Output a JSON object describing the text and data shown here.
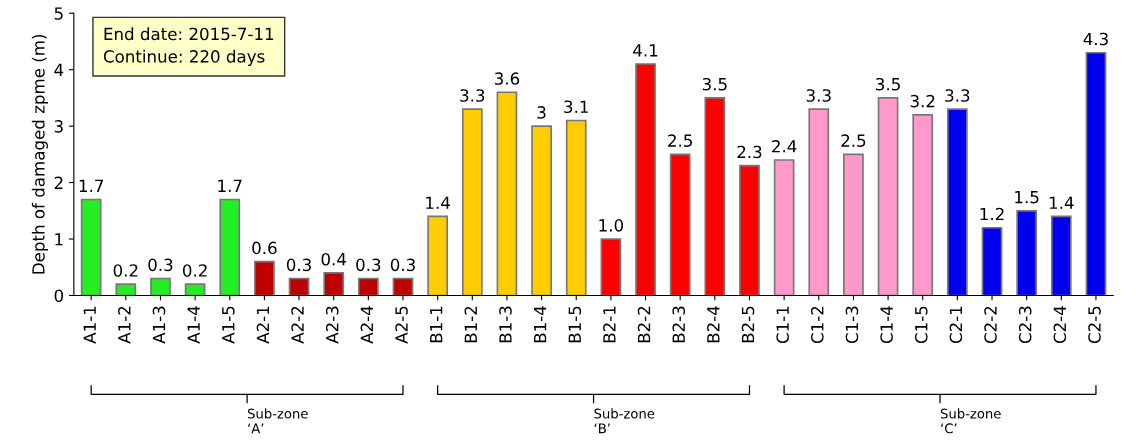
{
  "chart_data": {
    "type": "bar",
    "ylabel": "Depth of damaged zpme (m)",
    "categories": [
      "A1-1",
      "A1-2",
      "A1-3",
      "A1-4",
      "A1-5",
      "A2-1",
      "A2-2",
      "A2-3",
      "A2-4",
      "A2-5",
      "B1-1",
      "B1-2",
      "B1-3",
      "B1-4",
      "B1-5",
      "B2-1",
      "B2-2",
      "B2-3",
      "B2-4",
      "B2-5",
      "C1-1",
      "C1-2",
      "C1-3",
      "C1-4",
      "C1-5",
      "C2-1",
      "C2-2",
      "C2-3",
      "C2-4",
      "C2-5"
    ],
    "values": [
      1.7,
      0.2,
      0.3,
      0.2,
      1.7,
      0.6,
      0.3,
      0.4,
      0.3,
      0.3,
      1.4,
      3.3,
      3.6,
      3,
      3.1,
      1.0,
      4.1,
      2.5,
      3.5,
      2.3,
      2.4,
      3.3,
      2.5,
      3.5,
      3.2,
      3.3,
      1.2,
      1.5,
      1.4,
      4.3
    ],
    "value_labels": [
      "1.7",
      "0.2",
      "0.3",
      "0.2",
      "1.7",
      "0.6",
      "0.3",
      "0.4",
      "0.3",
      "0.3",
      "1.4",
      "3.3",
      "3.6",
      "3",
      "3.1",
      "1.0",
      "4.1",
      "2.5",
      "3.5",
      "2.3",
      "2.4",
      "3.3",
      "2.5",
      "3.5",
      "3.2",
      "3.3",
      "1.2",
      "1.5",
      "1.4",
      "4.3"
    ],
    "colors": [
      "#22ee22",
      "#22ee22",
      "#22ee22",
      "#22ee22",
      "#22ee22",
      "#c00000",
      "#c00000",
      "#c00000",
      "#c00000",
      "#c00000",
      "#ffcc00",
      "#ffcc00",
      "#ffcc00",
      "#ffcc00",
      "#ffcc00",
      "#ff0000",
      "#ff0000",
      "#ff0000",
      "#ff0000",
      "#ff0000",
      "#ff99cc",
      "#ff99cc",
      "#ff99cc",
      "#ff99cc",
      "#ff99cc",
      "#0000ee",
      "#0000ee",
      "#0000ee",
      "#0000ee",
      "#0000ee"
    ],
    "ylim": [
      0,
      5
    ],
    "yticks": [
      0,
      1,
      2,
      3,
      4,
      5
    ],
    "annotations": [
      "End date: 2015-7-11\nContinue: 220 days",
      "Sub-zone\n‘A’",
      "Sub-zone\n‘B’",
      "Sub-zone\n‘C’"
    ]
  }
}
